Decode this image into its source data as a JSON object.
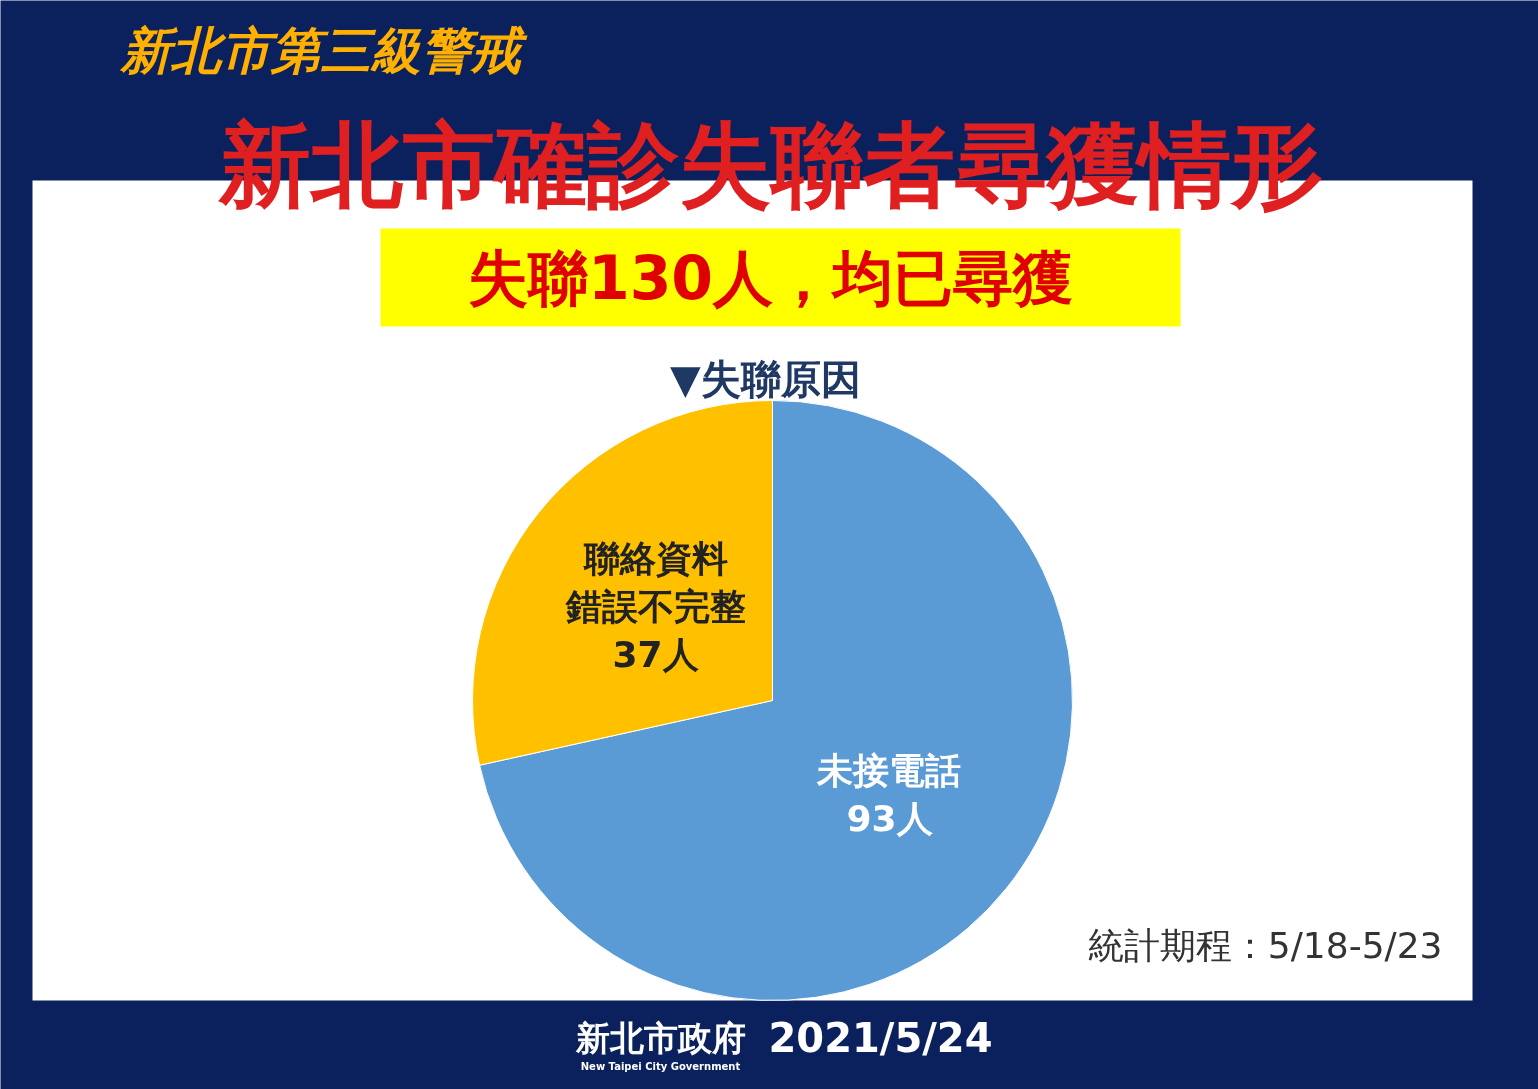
{
  "chart_data": {
    "type": "pie",
    "title": "新北市確診失聯者尋獲情形",
    "subtitle": "失聯130人，均已尋獲",
    "categories": [
      "未接電話",
      "聯絡資料錯誤不完整"
    ],
    "values": [
      93,
      37
    ],
    "value_labels": [
      "93人",
      "37人"
    ],
    "colors": [
      "#5b9bd5",
      "#ffc000"
    ],
    "annotations": [
      "新北市第三級警戒",
      "▼失聯原因",
      "統計期程：5/18-5/23",
      "新北市政府",
      "New Taipei City Government",
      "2021/5/24"
    ]
  }
}
